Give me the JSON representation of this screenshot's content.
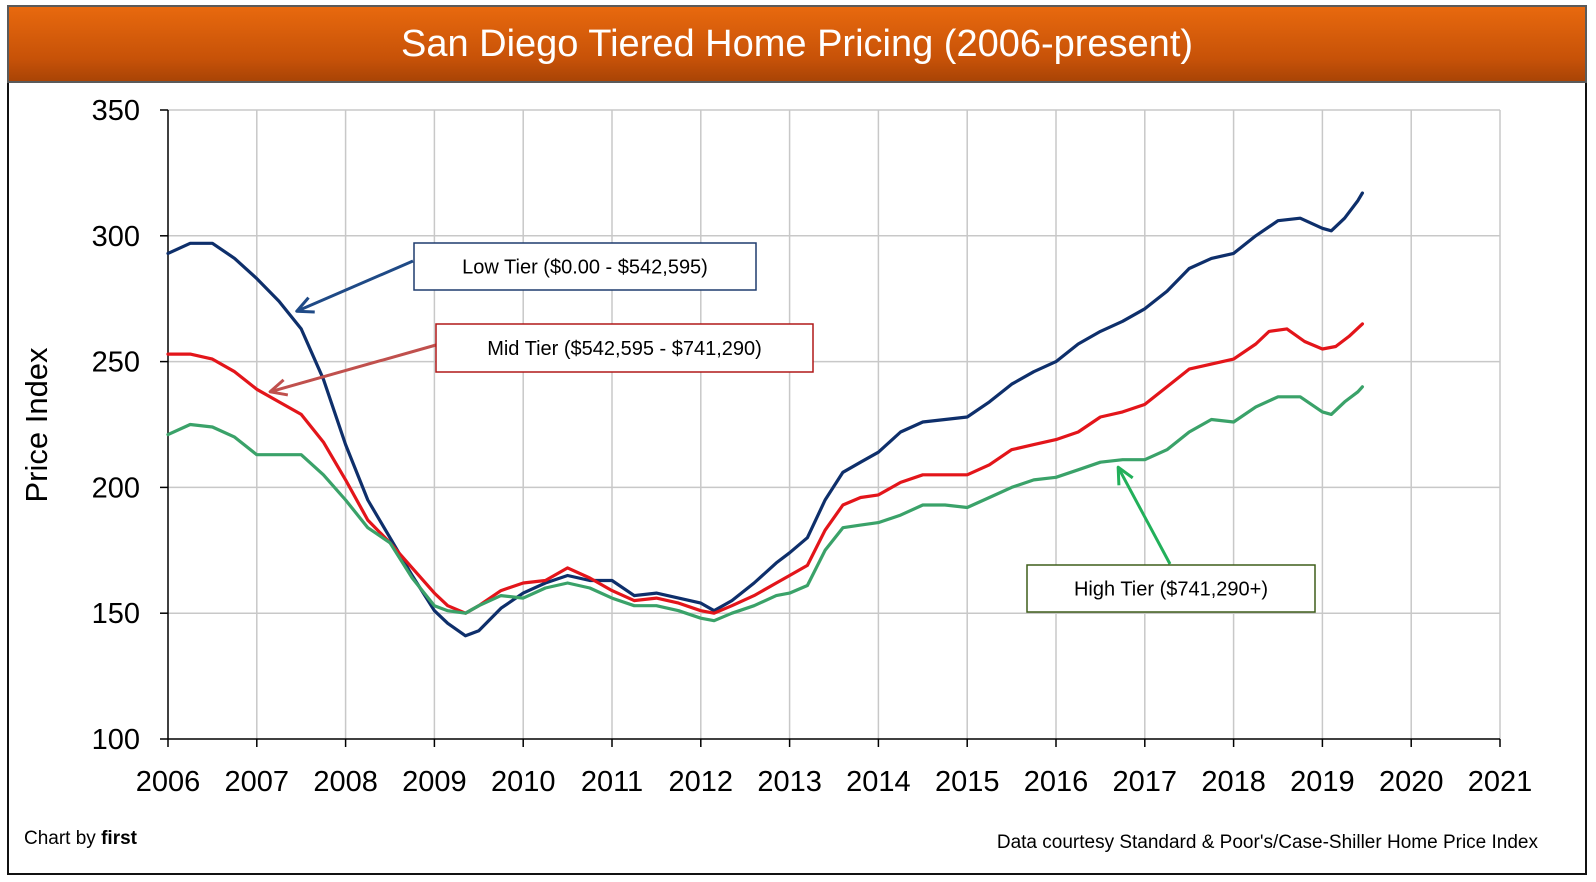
{
  "colors": {
    "low": "#0e2f6b",
    "mid": "#e3151a",
    "high": "#3aa269",
    "low_arrow": "#1f4a86",
    "mid_arrow": "#c0504d",
    "high_arrow": "#22b05a"
  },
  "chart_data": {
    "type": "line",
    "title": "San Diego Tiered Home Pricing (2006-present)",
    "ylabel": "Price Index",
    "xlabel": "",
    "xlim": [
      2006,
      2021
    ],
    "ylim": [
      100,
      350
    ],
    "x_ticks": [
      "2006",
      "2007",
      "2008",
      "2009",
      "2010",
      "2011",
      "2012",
      "2013",
      "2014",
      "2015",
      "2016",
      "2017",
      "2018",
      "2019",
      "2020",
      "2021"
    ],
    "y_ticks": [
      "100",
      "150",
      "200",
      "250",
      "300",
      "350"
    ],
    "grid": true,
    "series": [
      {
        "name": "Low Tier ($0.00 - $542,595)",
        "color_key": "low",
        "points": [
          [
            2006.0,
            293
          ],
          [
            2006.25,
            297
          ],
          [
            2006.5,
            297
          ],
          [
            2006.75,
            291
          ],
          [
            2007.0,
            283
          ],
          [
            2007.25,
            274
          ],
          [
            2007.5,
            263
          ],
          [
            2007.75,
            243
          ],
          [
            2008.0,
            217
          ],
          [
            2008.25,
            195
          ],
          [
            2008.5,
            180
          ],
          [
            2008.75,
            165
          ],
          [
            2009.0,
            151
          ],
          [
            2009.15,
            146
          ],
          [
            2009.35,
            141
          ],
          [
            2009.5,
            143
          ],
          [
            2009.75,
            152
          ],
          [
            2010.0,
            158
          ],
          [
            2010.25,
            162
          ],
          [
            2010.5,
            165
          ],
          [
            2010.75,
            163
          ],
          [
            2011.0,
            163
          ],
          [
            2011.25,
            157
          ],
          [
            2011.5,
            158
          ],
          [
            2011.75,
            156
          ],
          [
            2012.0,
            154
          ],
          [
            2012.15,
            151
          ],
          [
            2012.35,
            155
          ],
          [
            2012.6,
            162
          ],
          [
            2012.85,
            170
          ],
          [
            2013.0,
            174
          ],
          [
            2013.2,
            180
          ],
          [
            2013.4,
            195
          ],
          [
            2013.6,
            206
          ],
          [
            2013.8,
            210
          ],
          [
            2014.0,
            214
          ],
          [
            2014.25,
            222
          ],
          [
            2014.5,
            226
          ],
          [
            2014.75,
            227
          ],
          [
            2015.0,
            228
          ],
          [
            2015.25,
            234
          ],
          [
            2015.5,
            241
          ],
          [
            2015.75,
            246
          ],
          [
            2016.0,
            250
          ],
          [
            2016.25,
            257
          ],
          [
            2016.5,
            262
          ],
          [
            2016.75,
            266
          ],
          [
            2017.0,
            271
          ],
          [
            2017.25,
            278
          ],
          [
            2017.5,
            287
          ],
          [
            2017.75,
            291
          ],
          [
            2018.0,
            293
          ],
          [
            2018.25,
            300
          ],
          [
            2018.5,
            306
          ],
          [
            2018.75,
            307
          ],
          [
            2019.0,
            303
          ],
          [
            2019.1,
            302
          ],
          [
            2019.25,
            307
          ],
          [
            2019.4,
            314
          ],
          [
            2019.45,
            317
          ]
        ]
      },
      {
        "name": "Mid Tier ($542,595 - $741,290)",
        "color_key": "mid",
        "points": [
          [
            2006.0,
            253
          ],
          [
            2006.25,
            253
          ],
          [
            2006.5,
            251
          ],
          [
            2006.75,
            246
          ],
          [
            2007.0,
            239
          ],
          [
            2007.25,
            234
          ],
          [
            2007.5,
            229
          ],
          [
            2007.75,
            218
          ],
          [
            2008.0,
            203
          ],
          [
            2008.25,
            187
          ],
          [
            2008.5,
            178
          ],
          [
            2008.75,
            168
          ],
          [
            2009.0,
            158
          ],
          [
            2009.15,
            153
          ],
          [
            2009.35,
            150
          ],
          [
            2009.5,
            153
          ],
          [
            2009.75,
            159
          ],
          [
            2010.0,
            162
          ],
          [
            2010.25,
            163
          ],
          [
            2010.5,
            168
          ],
          [
            2010.75,
            164
          ],
          [
            2011.0,
            159
          ],
          [
            2011.25,
            155
          ],
          [
            2011.5,
            156
          ],
          [
            2011.75,
            154
          ],
          [
            2012.0,
            151
          ],
          [
            2012.15,
            150
          ],
          [
            2012.35,
            153
          ],
          [
            2012.6,
            157
          ],
          [
            2012.85,
            162
          ],
          [
            2013.0,
            165
          ],
          [
            2013.2,
            169
          ],
          [
            2013.4,
            183
          ],
          [
            2013.6,
            193
          ],
          [
            2013.8,
            196
          ],
          [
            2014.0,
            197
          ],
          [
            2014.25,
            202
          ],
          [
            2014.5,
            205
          ],
          [
            2014.75,
            205
          ],
          [
            2015.0,
            205
          ],
          [
            2015.25,
            209
          ],
          [
            2015.5,
            215
          ],
          [
            2015.75,
            217
          ],
          [
            2016.0,
            219
          ],
          [
            2016.25,
            222
          ],
          [
            2016.5,
            228
          ],
          [
            2016.75,
            230
          ],
          [
            2017.0,
            233
          ],
          [
            2017.25,
            240
          ],
          [
            2017.5,
            247
          ],
          [
            2017.75,
            249
          ],
          [
            2018.0,
            251
          ],
          [
            2018.25,
            257
          ],
          [
            2018.4,
            262
          ],
          [
            2018.6,
            263
          ],
          [
            2018.8,
            258
          ],
          [
            2019.0,
            255
          ],
          [
            2019.15,
            256
          ],
          [
            2019.3,
            260
          ],
          [
            2019.45,
            265
          ]
        ]
      },
      {
        "name": "High Tier ($741,290+)",
        "color_key": "high",
        "points": [
          [
            2006.0,
            221
          ],
          [
            2006.25,
            225
          ],
          [
            2006.5,
            224
          ],
          [
            2006.75,
            220
          ],
          [
            2007.0,
            213
          ],
          [
            2007.25,
            213
          ],
          [
            2007.5,
            213
          ],
          [
            2007.75,
            205
          ],
          [
            2008.0,
            195
          ],
          [
            2008.25,
            184
          ],
          [
            2008.5,
            178
          ],
          [
            2008.75,
            164
          ],
          [
            2009.0,
            153
          ],
          [
            2009.15,
            151
          ],
          [
            2009.35,
            150
          ],
          [
            2009.5,
            153
          ],
          [
            2009.75,
            157
          ],
          [
            2010.0,
            156
          ],
          [
            2010.25,
            160
          ],
          [
            2010.5,
            162
          ],
          [
            2010.75,
            160
          ],
          [
            2011.0,
            156
          ],
          [
            2011.25,
            153
          ],
          [
            2011.5,
            153
          ],
          [
            2011.75,
            151
          ],
          [
            2012.0,
            148
          ],
          [
            2012.15,
            147
          ],
          [
            2012.35,
            150
          ],
          [
            2012.6,
            153
          ],
          [
            2012.85,
            157
          ],
          [
            2013.0,
            158
          ],
          [
            2013.2,
            161
          ],
          [
            2013.4,
            175
          ],
          [
            2013.6,
            184
          ],
          [
            2013.8,
            185
          ],
          [
            2014.0,
            186
          ],
          [
            2014.25,
            189
          ],
          [
            2014.5,
            193
          ],
          [
            2014.75,
            193
          ],
          [
            2015.0,
            192
          ],
          [
            2015.25,
            196
          ],
          [
            2015.5,
            200
          ],
          [
            2015.75,
            203
          ],
          [
            2016.0,
            204
          ],
          [
            2016.25,
            207
          ],
          [
            2016.5,
            210
          ],
          [
            2016.75,
            211
          ],
          [
            2017.0,
            211
          ],
          [
            2017.25,
            215
          ],
          [
            2017.5,
            222
          ],
          [
            2017.75,
            227
          ],
          [
            2018.0,
            226
          ],
          [
            2018.25,
            232
          ],
          [
            2018.5,
            236
          ],
          [
            2018.75,
            236
          ],
          [
            2019.0,
            230
          ],
          [
            2019.1,
            229
          ],
          [
            2019.25,
            234
          ],
          [
            2019.4,
            238
          ],
          [
            2019.45,
            240
          ]
        ]
      }
    ],
    "annotations": [
      {
        "key": "low",
        "text": "Low Tier ($0.00 - $542,595)",
        "arrow_to": [
          2007.45,
          270
        ]
      },
      {
        "key": "mid",
        "text": "Mid Tier ($542,595 - $741,290)",
        "arrow_to": [
          2007.15,
          238
        ]
      },
      {
        "key": "high",
        "text": "High Tier ($741,290+)",
        "arrow_to": [
          2016.7,
          208
        ]
      }
    ]
  },
  "footer": {
    "credit_prefix": "Chart by ",
    "credit_name": "first",
    "source": "Data courtesy Standard & Poor's/Case-Shiller Home Price Index"
  }
}
